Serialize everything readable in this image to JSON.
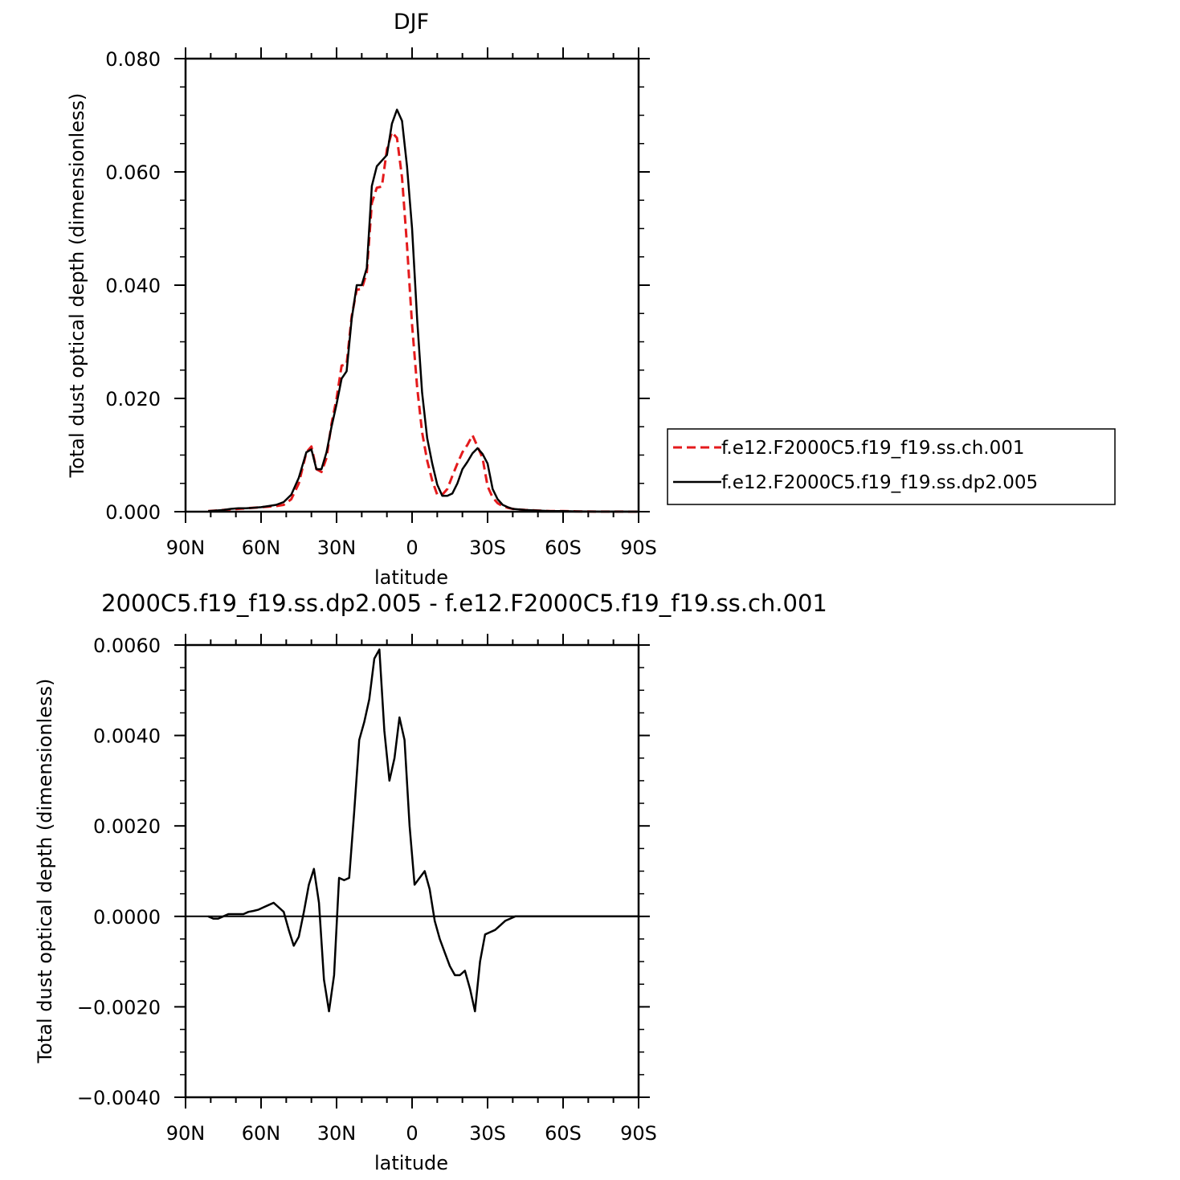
{
  "chart_data": [
    {
      "type": "line",
      "title": "DJF",
      "xlabel": "latitude",
      "ylabel": "Total dust optical depth (dimensionless)",
      "xlim": [
        90,
        -90
      ],
      "ylim": [
        0.0,
        0.08
      ],
      "xticks": [
        90,
        60,
        30,
        0,
        -30,
        -60,
        -90
      ],
      "xtick_labels": [
        "90N",
        "60N",
        "30N",
        "0",
        "30S",
        "60S",
        "90S"
      ],
      "yticks": [
        0.0,
        0.02,
        0.04,
        0.06,
        0.08
      ],
      "ytick_labels": [
        "0.000",
        "0.020",
        "0.040",
        "0.060",
        "0.080"
      ],
      "legend_position": "right",
      "series": [
        {
          "name": "f.e12.F2000C5.f19_f19.ss.ch.001",
          "color": "#e41a1c",
          "dash": "dashed",
          "x": [
            81,
            78,
            75,
            72,
            69,
            66,
            63,
            60,
            57,
            54,
            51,
            48,
            45,
            42,
            40,
            38,
            36,
            34,
            32,
            30,
            28,
            26,
            24,
            22,
            20,
            18,
            16,
            14,
            12,
            10,
            8,
            6,
            4,
            2,
            0,
            -2,
            -4,
            -6,
            -8,
            -10,
            -12,
            -14,
            -16,
            -18,
            -20,
            -22,
            -24,
            -26,
            -28,
            -30,
            -32,
            -34,
            -36,
            -38,
            -40,
            -45,
            -50,
            -55,
            -60,
            -65,
            -70,
            -75,
            -81,
            -90
          ],
          "y": [
            0.0001,
            0.0002,
            0.0003,
            0.0004,
            0.0005,
            0.0006,
            0.0007,
            0.0008,
            0.0009,
            0.001,
            0.0012,
            0.0022,
            0.005,
            0.0105,
            0.0115,
            0.0075,
            0.007,
            0.0095,
            0.0155,
            0.02,
            0.0258,
            0.026,
            0.0345,
            0.0392,
            0.0393,
            0.0422,
            0.0545,
            0.0572,
            0.0574,
            0.064,
            0.067,
            0.066,
            0.059,
            0.047,
            0.033,
            0.022,
            0.014,
            0.009,
            0.0055,
            0.003,
            0.003,
            0.004,
            0.0063,
            0.0085,
            0.0105,
            0.0118,
            0.0135,
            0.0115,
            0.0095,
            0.0045,
            0.0025,
            0.0015,
            0.001,
            0.0007,
            0.0005,
            0.0003,
            0.0002,
            0.0001,
            0.0001,
            5e-05,
            3e-05,
            2e-05,
            1e-05,
            0.0
          ]
        },
        {
          "name": "f.e12.F2000C5.f19_f19.ss.dp2.005",
          "color": "#000000",
          "dash": "solid",
          "x": [
            81,
            78,
            75,
            72,
            69,
            66,
            63,
            60,
            57,
            54,
            51,
            48,
            45,
            42,
            40,
            38,
            36,
            34,
            32,
            30,
            28,
            26,
            24,
            22,
            20,
            18,
            16,
            14,
            12,
            10,
            8,
            6,
            4,
            2,
            0,
            -2,
            -4,
            -6,
            -8,
            -10,
            -12,
            -14,
            -16,
            -18,
            -20,
            -22,
            -24,
            -26,
            -28,
            -30,
            -32,
            -34,
            -36,
            -38,
            -40,
            -45,
            -50,
            -55,
            -60,
            -65,
            -70,
            -75,
            -81,
            -90
          ],
          "y": [
            0.0001,
            0.0002,
            0.0003,
            0.0005,
            0.0006,
            0.0006,
            0.0007,
            0.0008,
            0.001,
            0.0012,
            0.0017,
            0.003,
            0.006,
            0.0105,
            0.011,
            0.0075,
            0.0075,
            0.0105,
            0.015,
            0.019,
            0.0235,
            0.0248,
            0.034,
            0.04,
            0.04,
            0.043,
            0.0575,
            0.061,
            0.062,
            0.063,
            0.0685,
            0.071,
            0.069,
            0.061,
            0.05,
            0.034,
            0.021,
            0.013,
            0.0085,
            0.0048,
            0.0028,
            0.0028,
            0.0032,
            0.005,
            0.0075,
            0.0088,
            0.0103,
            0.0112,
            0.0102,
            0.0085,
            0.004,
            0.0022,
            0.0012,
            0.0008,
            0.0005,
            0.0003,
            0.0002,
            0.0001,
            0.0001,
            5e-05,
            3e-05,
            2e-05,
            1e-05,
            0.0
          ]
        }
      ]
    },
    {
      "type": "line",
      "title": "2000C5.f19_f19.ss.dp2.005 - f.e12.F2000C5.f19_f19.ss.ch.001",
      "xlabel": "latitude",
      "ylabel": "Total dust optical depth (dimensionless)",
      "xlim": [
        90,
        -90
      ],
      "ylim": [
        -0.004,
        0.006
      ],
      "xticks": [
        90,
        60,
        30,
        0,
        -30,
        -60,
        -90
      ],
      "xtick_labels": [
        "90N",
        "60N",
        "30N",
        "0",
        "30S",
        "60S",
        "90S"
      ],
      "yticks": [
        -0.004,
        -0.002,
        0.0,
        0.002,
        0.004,
        0.006
      ],
      "ytick_labels": [
        "-0.0040",
        "-0.0020",
        "0.0000",
        "0.0020",
        "0.0040",
        "0.0060"
      ],
      "series": [
        {
          "color": "#000000",
          "dash": "solid",
          "x": [
            81,
            79,
            77,
            75,
            73,
            71,
            69,
            67,
            65,
            63,
            61,
            59,
            57,
            55,
            53,
            51,
            49,
            47,
            45,
            43,
            41,
            39,
            37,
            35,
            33,
            31,
            29,
            27,
            25,
            23,
            21,
            19,
            17,
            15,
            13,
            11,
            9,
            7,
            5,
            3,
            1,
            -1,
            -3,
            -5,
            -7,
            -9,
            -11,
            -13,
            -15,
            -17,
            -19,
            -21,
            -23,
            -25,
            -27,
            -29,
            -31,
            -33,
            -35,
            -37,
            -39,
            -41,
            -45,
            -50,
            -55,
            -60,
            -65,
            -70,
            -75,
            -80,
            -85,
            -90
          ],
          "y": [
            0.0,
            -5e-05,
            -5e-05,
            0.0,
            5e-05,
            5e-05,
            5e-05,
            5e-05,
            0.0001,
            0.00012,
            0.00015,
            0.0002,
            0.00025,
            0.0003,
            0.0002,
            0.0001,
            -0.0003,
            -0.00065,
            -0.00045,
            0.0001,
            0.0007,
            0.00105,
            0.0003,
            -0.0014,
            -0.0021,
            -0.0013,
            0.00085,
            0.0008,
            0.00085,
            0.0023,
            0.0039,
            0.0043,
            0.0048,
            0.0057,
            0.0059,
            0.0041,
            0.003,
            0.0035,
            0.0044,
            0.0039,
            0.002,
            0.0007,
            0.00085,
            0.001,
            0.0006,
            -0.0001,
            -0.0005,
            -0.0008,
            -0.0011,
            -0.0013,
            -0.0013,
            -0.0012,
            -0.0016,
            -0.0021,
            -0.001,
            -0.0004,
            -0.00035,
            -0.0003,
            -0.0002,
            -0.0001,
            -5e-05,
            0.0,
            0.0,
            0.0,
            0.0,
            0.0,
            0.0,
            0.0,
            0.0,
            0.0,
            0.0,
            0.0
          ]
        }
      ]
    }
  ]
}
